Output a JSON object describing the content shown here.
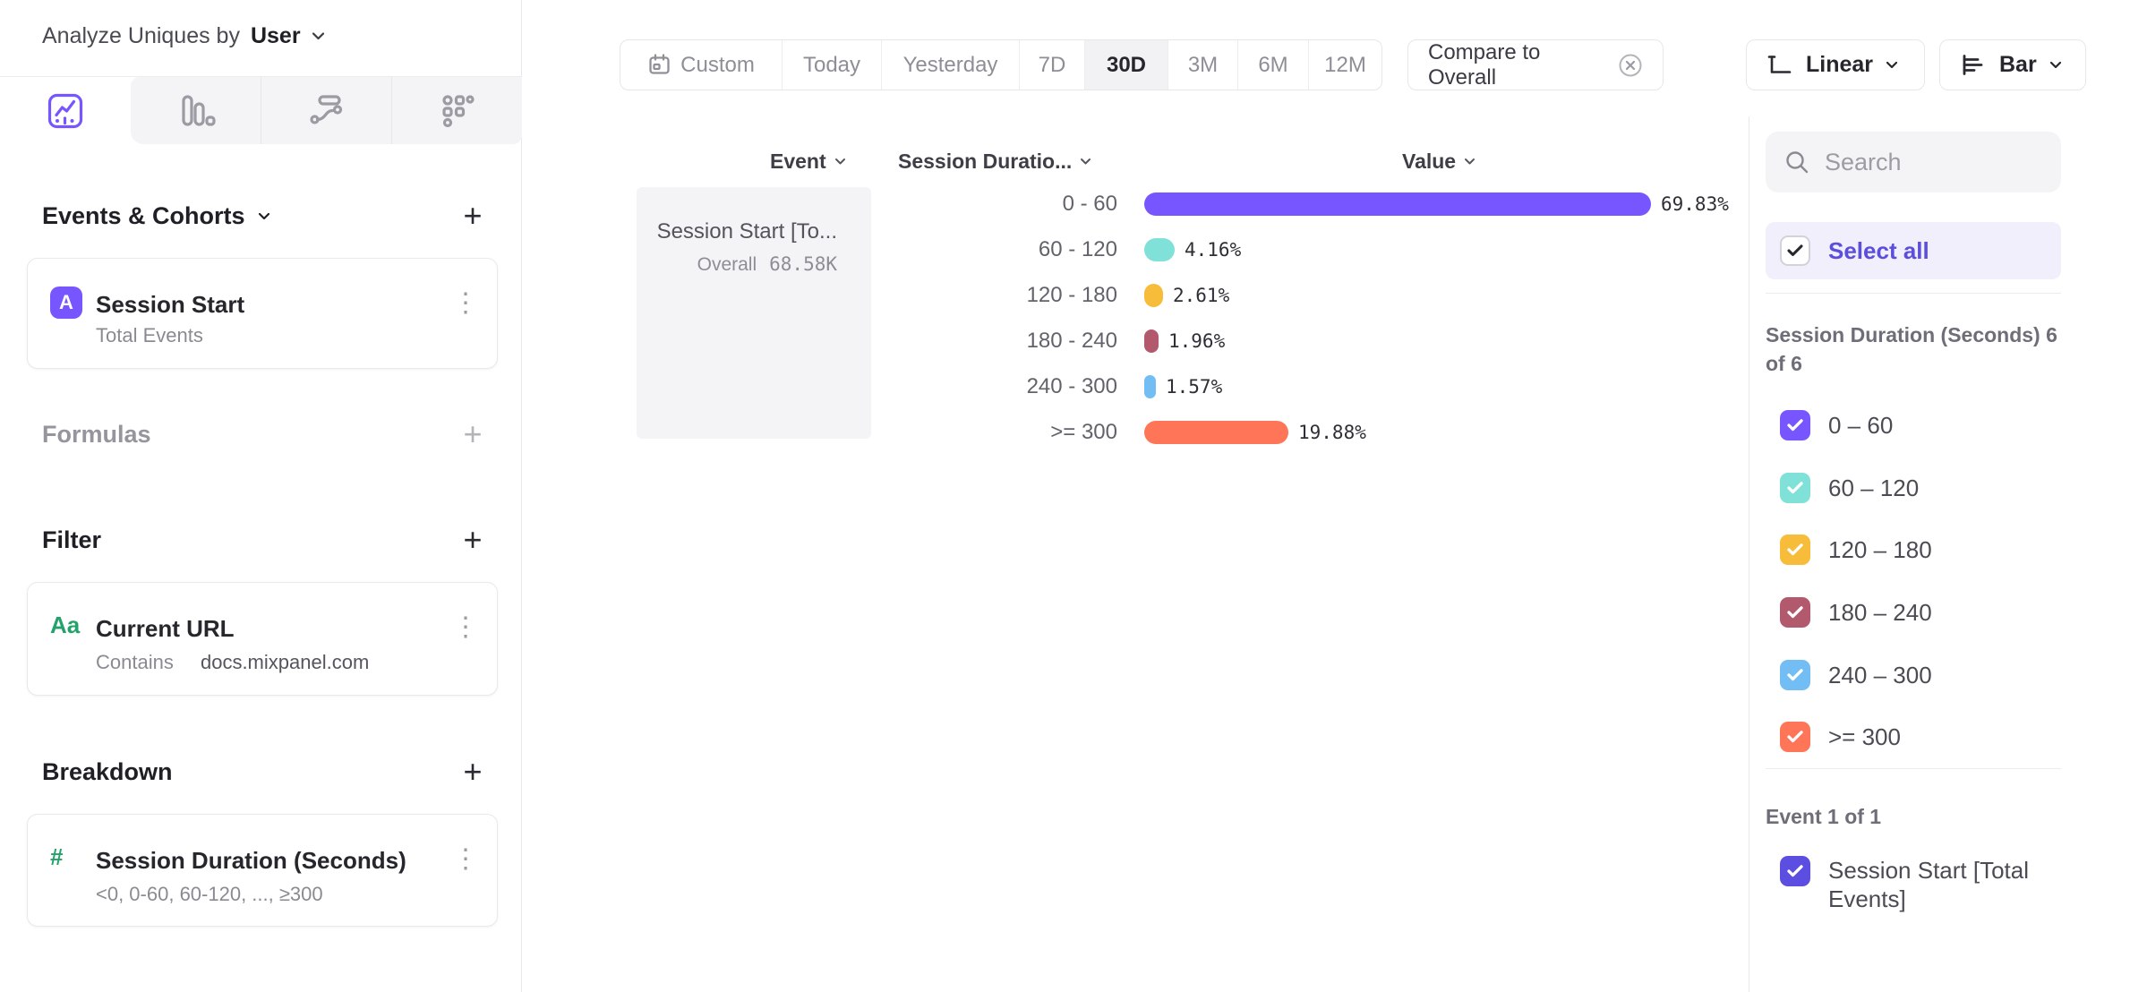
{
  "header": {
    "analyze_prefix": "Analyze Uniques by",
    "analyze_selection": "User"
  },
  "icons": {
    "kebab": "⋮",
    "plus": "+"
  },
  "sidebar": {
    "events_section": {
      "title": "Events & Cohorts",
      "item": {
        "badge": "A",
        "title": "Session Start",
        "subtitle": "Total Events"
      }
    },
    "formulas_section": {
      "title": "Formulas"
    },
    "filter_section": {
      "title": "Filter",
      "item": {
        "icon_label": "Aa",
        "title": "Current URL",
        "operator": "Contains",
        "value": "docs.mixpanel.com"
      }
    },
    "breakdown_section": {
      "title": "Breakdown",
      "item": {
        "icon_label": "#",
        "title": "Session Duration (Seconds)",
        "subtitle": "<0, 0-60, 60-120, ..., ≥300"
      }
    }
  },
  "toolbar": {
    "date_ranges": [
      "Custom",
      "Today",
      "Yesterday",
      "7D",
      "30D",
      "3M",
      "6M",
      "12M"
    ],
    "selected_range": "30D",
    "compare_label": "Compare to Overall",
    "scale_label": "Linear",
    "chart_type_label": "Bar"
  },
  "columns": {
    "event": "Event",
    "breakdown": "Session Duratio...",
    "value": "Value"
  },
  "event_cell": {
    "title": "Session Start [To...",
    "overall_label": "Overall",
    "overall_value": "68.58K"
  },
  "chart_data": {
    "type": "bar",
    "orientation": "horizontal",
    "series_name": "Session Start [Total Events]",
    "categories": [
      "0 - 60",
      "60 - 120",
      "120 - 180",
      "180 - 240",
      "240 - 300",
      ">= 300"
    ],
    "values": [
      69.83,
      4.16,
      2.61,
      1.96,
      1.57,
      19.88
    ],
    "value_labels": [
      "69.83%",
      "4.16%",
      "2.61%",
      "1.96%",
      "1.57%",
      "19.88%"
    ],
    "colors": [
      "#7856FF",
      "#80E1D9",
      "#F8BC3B",
      "#B2596E",
      "#72BEF4",
      "#FF7557"
    ],
    "unit": "percent",
    "xlim": [
      0,
      100
    ],
    "overall_label": "Overall",
    "overall_value": "68.58K"
  },
  "right_panel": {
    "search_placeholder": "Search",
    "select_all_label": "Select all",
    "breakdown_group_label": "Session Duration (Seconds) 6 of 6",
    "segments": [
      {
        "label": "0 – 60",
        "color": "#7856FF",
        "checked": true
      },
      {
        "label": "60 – 120",
        "color": "#80E1D9",
        "checked": true
      },
      {
        "label": "120 – 180",
        "color": "#F8BC3B",
        "checked": true
      },
      {
        "label": "180 – 240",
        "color": "#B2596E",
        "checked": true
      },
      {
        "label": "240 – 300",
        "color": "#72BEF4",
        "checked": true
      },
      {
        "label": ">= 300",
        "color": "#FF7557",
        "checked": true
      }
    ],
    "event_group_label": "Event 1 of 1",
    "event_item": {
      "label": "Session Start [Total Events]",
      "color": "#5B4EE0",
      "checked": true
    }
  }
}
